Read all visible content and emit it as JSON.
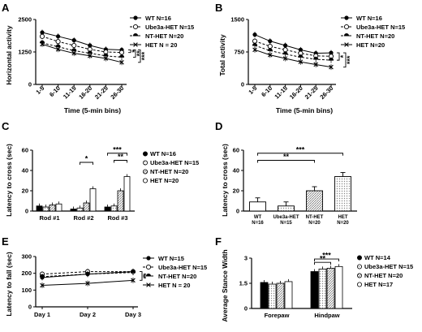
{
  "figure": {
    "panel_letters": [
      "A",
      "B",
      "C",
      "D",
      "E",
      "F"
    ]
  },
  "chart_data": [
    {
      "panel": "A",
      "type": "line",
      "xlabel": "Time (5-min bins)",
      "ylabel": "Horizontal activity",
      "categories": [
        "1-5",
        "6-10",
        "11-15",
        "16-20",
        "21-25",
        "26-30"
      ],
      "yticks": [
        0,
        1250,
        2500
      ],
      "ylim": [
        0,
        2500
      ],
      "legend_position": "top-right",
      "series": [
        {
          "name": "WT N=16",
          "marker": "filled-circle",
          "line": "solid",
          "values": [
            2000,
            1850,
            1700,
            1500,
            1350,
            1330
          ]
        },
        {
          "name": "Ube3a-HET N=15",
          "marker": "open-circle",
          "line": "dashed",
          "values": [
            1850,
            1650,
            1500,
            1350,
            1250,
            1230
          ]
        },
        {
          "name": "NT-HET N=20",
          "marker": "half-filled",
          "line": "dashed",
          "values": [
            1600,
            1450,
            1300,
            1200,
            1100,
            1050
          ]
        },
        {
          "name": "HET N = 20",
          "marker": "cross",
          "line": "solid",
          "values": [
            1550,
            1350,
            1200,
            1100,
            1000,
            850
          ]
        }
      ],
      "significance": [
        "*",
        "**",
        "***"
      ]
    },
    {
      "panel": "B",
      "type": "line",
      "xlabel": "Time (5-min bins)",
      "ylabel": "Total activity",
      "categories": [
        "1-5",
        "6-10",
        "11-15",
        "16-20",
        "21-25",
        "26-30"
      ],
      "yticks": [
        0,
        750,
        1500
      ],
      "ylim": [
        0,
        1500
      ],
      "legend_position": "top-right",
      "series": [
        {
          "name": "WT N=16",
          "marker": "filled-circle",
          "line": "solid",
          "values": [
            1150,
            1000,
            900,
            800,
            720,
            730
          ]
        },
        {
          "name": "Ube3a-HET N=15",
          "marker": "open-circle",
          "line": "dashed",
          "values": [
            1000,
            880,
            800,
            720,
            660,
            650
          ]
        },
        {
          "name": "NT-HET N=20",
          "marker": "half-filled",
          "line": "dashed",
          "values": [
            900,
            780,
            700,
            630,
            580,
            560
          ]
        },
        {
          "name": "HET N=20",
          "marker": "cross",
          "line": "solid",
          "values": [
            800,
            680,
            600,
            520,
            460,
            400
          ]
        }
      ],
      "significance": [
        "*",
        "***"
      ]
    },
    {
      "panel": "C",
      "type": "bar",
      "xlabel": "",
      "ylabel": "Latency to cross (sec)",
      "categories": [
        "Rod #1",
        "Rod #2",
        "Rod #3"
      ],
      "yticks": [
        0,
        20,
        40,
        60
      ],
      "ylim": [
        0,
        60
      ],
      "legend_position": "right",
      "series": [
        {
          "name": "WT N=16",
          "values": [
            5,
            2,
            4
          ]
        },
        {
          "name": "Ube3a-HET N=15",
          "values": [
            4,
            3,
            5
          ]
        },
        {
          "name": "NT-HET N=20",
          "values": [
            6,
            8,
            20
          ]
        },
        {
          "name": "HET N=20",
          "values": [
            7,
            22,
            34
          ]
        }
      ],
      "significance": [
        "*",
        "**",
        "***"
      ]
    },
    {
      "panel": "D",
      "type": "bar",
      "xlabel": "",
      "ylabel": "Latency to cross (sec)",
      "categories": [
        "WT\nN=16",
        "Ube3a-HET\nN=15",
        "NT-HET\nN=20",
        "HET\nN=20"
      ],
      "yticks": [
        0,
        20,
        40,
        60
      ],
      "ylim": [
        0,
        60
      ],
      "values": [
        9,
        5,
        20,
        34
      ],
      "significance": [
        "**",
        "***"
      ]
    },
    {
      "panel": "E",
      "type": "line",
      "xlabel": "",
      "ylabel": "Latency to fall (sec)",
      "categories": [
        "Day 1",
        "Day 2",
        "Day 3"
      ],
      "yticks": [
        0,
        100,
        200,
        300
      ],
      "ylim": [
        0,
        300
      ],
      "legend_position": "top-right",
      "series": [
        {
          "name": "WT N=15",
          "marker": "filled-circle",
          "line": "solid",
          "values": [
            175,
            195,
            210
          ]
        },
        {
          "name": "Ube3a-HET N=15",
          "marker": "open-circle",
          "line": "dashed",
          "values": [
            195,
            210,
            210
          ]
        },
        {
          "name": "NT-HET N=20",
          "marker": "half-filled",
          "line": "dashed",
          "values": [
            180,
            195,
            205
          ]
        },
        {
          "name": "HET N = 20",
          "marker": "cross",
          "line": "solid",
          "values": [
            128,
            140,
            158
          ]
        }
      ],
      "significance": [
        "**"
      ]
    },
    {
      "panel": "F",
      "type": "bar",
      "xlabel": "",
      "ylabel": "Average Stance Width",
      "categories": [
        "Forepaw",
        "Hindpaw"
      ],
      "yticks": [
        0,
        1.5,
        3.0
      ],
      "ylim": [
        0,
        3.0
      ],
      "legend_position": "top-right",
      "series": [
        {
          "name": "WT N=14",
          "values": [
            1.55,
            2.2
          ]
        },
        {
          "name": "Ube3a-HET N=15",
          "values": [
            1.45,
            2.35
          ]
        },
        {
          "name": "NT-HET N=20",
          "values": [
            1.5,
            2.4
          ]
        },
        {
          "name": "HET N=17",
          "values": [
            1.6,
            2.5
          ]
        }
      ],
      "significance": [
        "**",
        "***"
      ]
    }
  ]
}
